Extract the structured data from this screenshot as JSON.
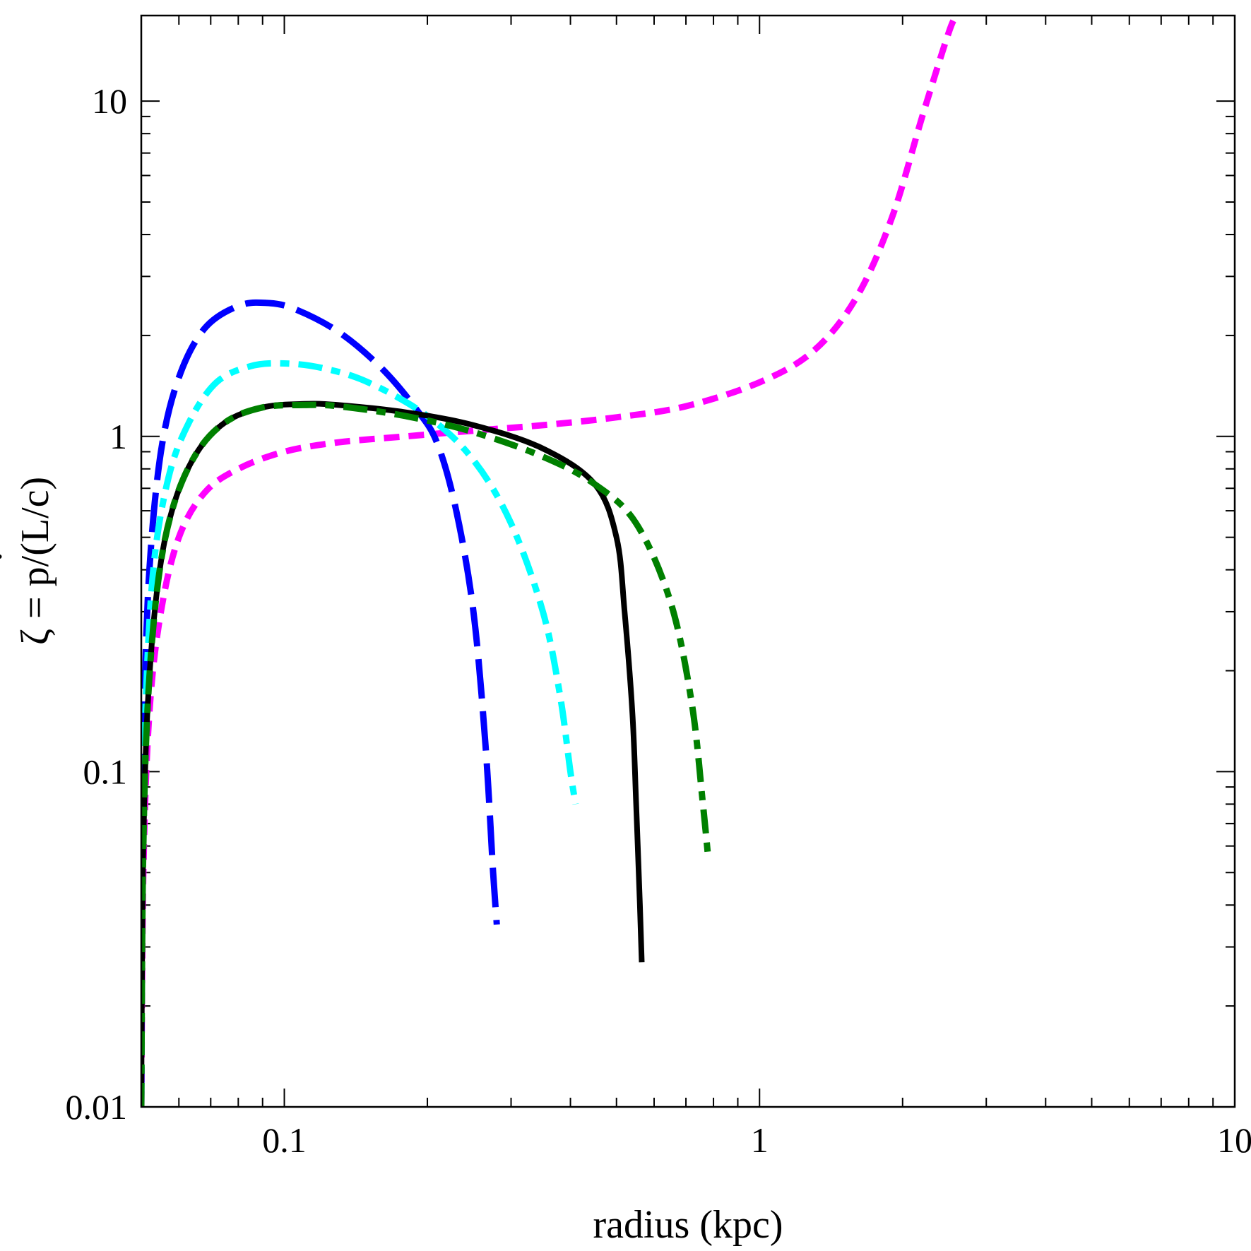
{
  "chart_data": {
    "type": "line",
    "title": "",
    "xlabel": "radius (kpc)",
    "ylabel_parts": [
      "ζ = p",
      "/(L/c)"
    ],
    "ylabel_dot": "˙",
    "xscale": "log",
    "yscale": "log",
    "xlim": [
      0.05,
      10
    ],
    "ylim": [
      0.01,
      18
    ],
    "x_ticks": [
      {
        "value": 0.1,
        "label": "0.1"
      },
      {
        "value": 1,
        "label": "1"
      },
      {
        "value": 10,
        "label": "10"
      }
    ],
    "y_ticks": [
      {
        "value": 0.01,
        "label": "0.01"
      },
      {
        "value": 0.1,
        "label": "0.1"
      },
      {
        "value": 1,
        "label": "1"
      },
      {
        "value": 10,
        "label": "10"
      }
    ],
    "grid": false,
    "series": [
      {
        "name": "magenta-short-dash",
        "color": "#ff00ff",
        "dash": "short-dash",
        "x": [
          0.05,
          0.0505,
          0.052,
          0.055,
          0.06,
          0.068,
          0.08,
          0.1,
          0.13,
          0.18,
          0.25,
          0.35,
          0.5,
          0.7,
          1.0,
          1.3,
          1.6,
          1.9,
          2.2,
          2.5,
          2.6
        ],
        "y": [
          0.01,
          0.05,
          0.15,
          0.3,
          0.5,
          0.68,
          0.8,
          0.9,
          0.96,
          1.0,
          1.04,
          1.08,
          1.14,
          1.23,
          1.45,
          1.8,
          2.6,
          4.5,
          9.0,
          16.0,
          18.0
        ]
      },
      {
        "name": "blue-long-dash",
        "color": "#0000ff",
        "dash": "long-dash",
        "x": [
          0.05,
          0.0502,
          0.0507,
          0.052,
          0.055,
          0.06,
          0.068,
          0.08,
          0.092,
          0.105,
          0.13,
          0.16,
          0.19,
          0.21,
          0.23,
          0.25,
          0.265,
          0.275,
          0.28
        ],
        "y": [
          0.01,
          0.05,
          0.15,
          0.4,
          0.9,
          1.5,
          2.1,
          2.45,
          2.5,
          2.4,
          2.05,
          1.6,
          1.2,
          0.95,
          0.6,
          0.3,
          0.12,
          0.05,
          0.035
        ]
      },
      {
        "name": "cyan-dash-dot",
        "color": "#00ffff",
        "dash": "dash-dot",
        "x": [
          0.05,
          0.0503,
          0.051,
          0.053,
          0.057,
          0.063,
          0.072,
          0.085,
          0.1,
          0.12,
          0.15,
          0.2,
          0.25,
          0.3,
          0.35,
          0.38,
          0.4,
          0.41
        ],
        "y": [
          0.01,
          0.05,
          0.15,
          0.4,
          0.75,
          1.1,
          1.45,
          1.62,
          1.65,
          1.6,
          1.45,
          1.15,
          0.85,
          0.55,
          0.3,
          0.17,
          0.1,
          0.08
        ]
      },
      {
        "name": "black-solid",
        "color": "#000000",
        "dash": "solid",
        "x": [
          0.05,
          0.0504,
          0.0515,
          0.054,
          0.058,
          0.065,
          0.075,
          0.09,
          0.11,
          0.13,
          0.18,
          0.25,
          0.35,
          0.45,
          0.5,
          0.52,
          0.54,
          0.55,
          0.56,
          0.565
        ],
        "y": [
          0.01,
          0.05,
          0.15,
          0.35,
          0.6,
          0.88,
          1.1,
          1.22,
          1.25,
          1.24,
          1.18,
          1.08,
          0.92,
          0.72,
          0.5,
          0.3,
          0.15,
          0.08,
          0.04,
          0.027
        ]
      },
      {
        "name": "green-dash-dot",
        "color": "#008000",
        "dash": "dash-dot",
        "x": [
          0.05,
          0.0504,
          0.0515,
          0.054,
          0.058,
          0.065,
          0.075,
          0.09,
          0.11,
          0.13,
          0.18,
          0.25,
          0.35,
          0.45,
          0.55,
          0.65,
          0.72,
          0.76,
          0.78
        ],
        "y": [
          0.01,
          0.05,
          0.15,
          0.35,
          0.6,
          0.88,
          1.1,
          1.22,
          1.24,
          1.23,
          1.15,
          1.03,
          0.87,
          0.72,
          0.55,
          0.32,
          0.16,
          0.08,
          0.055
        ]
      }
    ]
  }
}
